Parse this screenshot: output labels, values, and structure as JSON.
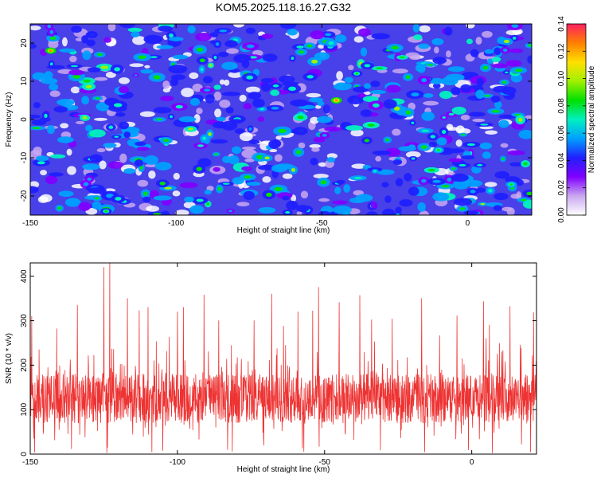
{
  "figure": {
    "title": "KOM5.2025.118.16.27.G32"
  },
  "chart_data": [
    {
      "type": "heatmap",
      "xlabel": "Height of straight line (km)",
      "ylabel": "Frequency (Hz)",
      "xlim": [
        -150,
        22
      ],
      "ylim": [
        -25,
        25
      ],
      "x_ticks": [
        "-150",
        "-100",
        "-50",
        "0"
      ],
      "y_ticks": [
        "20",
        "10",
        "0",
        "-10",
        "-20"
      ],
      "colorbar": {
        "label": "Normalized spectral amplitude",
        "range": [
          0,
          0.14
        ],
        "ticks": [
          "0.00",
          "0.02",
          "0.04",
          "0.06",
          "0.08",
          "0.10",
          "0.12",
          "0.14"
        ],
        "colors": [
          "#ffffff",
          "#c9a8f0",
          "#8000ff",
          "#2020ff",
          "#00a0ff",
          "#00f0c0",
          "#00e000",
          "#a0f000",
          "#ffe000",
          "#ff8000",
          "#ff2060"
        ]
      },
      "background_value": 0.025,
      "blob_count": 520,
      "hotspots": [
        {
          "x": -143,
          "y": 18,
          "value": 0.12
        },
        {
          "x": -45,
          "y": 5,
          "value": 0.13
        },
        {
          "x": -38,
          "y": 12,
          "value": 0.08
        },
        {
          "x": -10,
          "y": -8,
          "value": 0.09
        },
        {
          "x": 15,
          "y": -17,
          "value": 0.09
        },
        {
          "x": -124,
          "y": -24,
          "value": 0.08
        }
      ]
    },
    {
      "type": "line",
      "xlabel": "Height of straight line (km)",
      "ylabel": "SNR (10 * v/v)",
      "xlim": [
        -150,
        22
      ],
      "ylim": [
        0,
        430
      ],
      "x_ticks": [
        "-150",
        "-100",
        "-50",
        "0"
      ],
      "y_ticks": [
        "0",
        "100",
        "200",
        "300",
        "400"
      ],
      "color": "#ee3333",
      "sample_count": 1720,
      "base_value": 125,
      "noise": 55,
      "peaks": [
        {
          "x": -149.5,
          "y": 310
        },
        {
          "x": -147,
          "y": 235
        },
        {
          "x": -141,
          "y": 282
        },
        {
          "x": -134,
          "y": 335
        },
        {
          "x": -125,
          "y": 420
        },
        {
          "x": -123,
          "y": 430
        },
        {
          "x": -117,
          "y": 350
        },
        {
          "x": -113,
          "y": 323
        },
        {
          "x": -110,
          "y": 330
        },
        {
          "x": -100,
          "y": 320
        },
        {
          "x": -98,
          "y": 330
        },
        {
          "x": -91,
          "y": 358
        },
        {
          "x": -86,
          "y": 300
        },
        {
          "x": -74,
          "y": 300
        },
        {
          "x": -68,
          "y": 360
        },
        {
          "x": -64,
          "y": 288
        },
        {
          "x": -59,
          "y": 320
        },
        {
          "x": -54,
          "y": 322
        },
        {
          "x": -52,
          "y": 375
        },
        {
          "x": -45,
          "y": 341
        },
        {
          "x": -38,
          "y": 357
        },
        {
          "x": -34,
          "y": 302
        },
        {
          "x": -27,
          "y": 304
        },
        {
          "x": -17,
          "y": 350
        },
        {
          "x": -5,
          "y": 311
        },
        {
          "x": 4,
          "y": 343
        },
        {
          "x": 6,
          "y": 290
        },
        {
          "x": 13,
          "y": 332
        },
        {
          "x": 21,
          "y": 318
        }
      ],
      "dips": [
        {
          "x": -148.5,
          "y": 4
        },
        {
          "x": -136,
          "y": 12
        },
        {
          "x": -124,
          "y": 3
        },
        {
          "x": -105,
          "y": 8
        },
        {
          "x": -83,
          "y": 10
        },
        {
          "x": -57,
          "y": 6
        },
        {
          "x": -31,
          "y": 9
        },
        {
          "x": -16,
          "y": 5
        },
        {
          "x": 7,
          "y": 3
        },
        {
          "x": 20,
          "y": 5
        }
      ]
    }
  ]
}
